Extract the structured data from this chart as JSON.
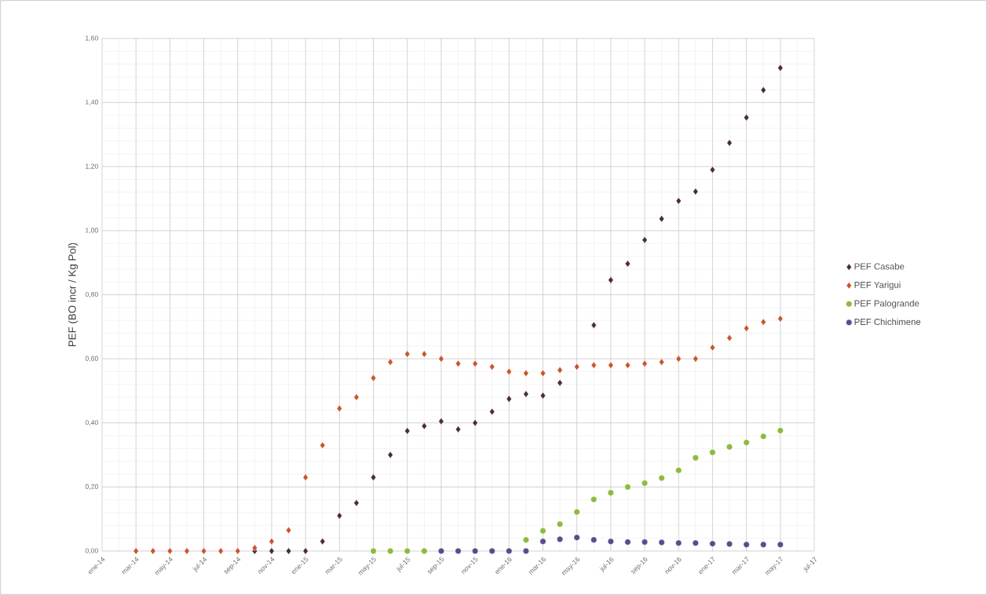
{
  "chart_data": {
    "type": "scatter",
    "ylabel": "PEF (BO incr / Kg Pol)",
    "xlim": [
      "2014-01",
      "2017-07"
    ],
    "xticks": [
      {
        "value": "2014-01",
        "label": "ene-14"
      },
      {
        "value": "2014-03",
        "label": "mar-14"
      },
      {
        "value": "2014-05",
        "label": "may-14"
      },
      {
        "value": "2014-07",
        "label": "jul-14"
      },
      {
        "value": "2014-09",
        "label": "sep-14"
      },
      {
        "value": "2014-11",
        "label": "nov-14"
      },
      {
        "value": "2015-01",
        "label": "ene-15"
      },
      {
        "value": "2015-03",
        "label": "mar-15"
      },
      {
        "value": "2015-05",
        "label": "may-15"
      },
      {
        "value": "2015-07",
        "label": "jul-15"
      },
      {
        "value": "2015-09",
        "label": "sep-15"
      },
      {
        "value": "2015-11",
        "label": "nov-15"
      },
      {
        "value": "2016-01",
        "label": "ene-16"
      },
      {
        "value": "2016-03",
        "label": "mar-16"
      },
      {
        "value": "2016-05",
        "label": "may-16"
      },
      {
        "value": "2016-07",
        "label": "jul-16"
      },
      {
        "value": "2016-09",
        "label": "sep-16"
      },
      {
        "value": "2016-11",
        "label": "nov-16"
      },
      {
        "value": "2017-01",
        "label": "ene-17"
      },
      {
        "value": "2017-03",
        "label": "mar-17"
      },
      {
        "value": "2017-05",
        "label": "may-17"
      },
      {
        "value": "2017-07",
        "label": "jul-17"
      }
    ],
    "ylim": [
      0,
      1.6
    ],
    "yticks": [
      {
        "value": 0,
        "label": "0,00"
      },
      {
        "value": 0.2,
        "label": "0,20"
      },
      {
        "value": 0.4,
        "label": "0,40"
      },
      {
        "value": 0.6,
        "label": "0,60"
      },
      {
        "value": 0.8,
        "label": "0,80"
      },
      {
        "value": 1.0,
        "label": "1,00"
      },
      {
        "value": 1.2,
        "label": "1,20"
      },
      {
        "value": 1.4,
        "label": "1,40"
      },
      {
        "value": 1.6,
        "label": "1,60"
      }
    ],
    "grid": true,
    "legend": "right",
    "series": [
      {
        "name": "PEF Casabe",
        "color": "#4a2b3b",
        "marker": "diamond",
        "x": [
          "2014-10",
          "2014-11",
          "2014-12",
          "2015-01",
          "2015-02",
          "2015-03",
          "2015-04",
          "2015-05",
          "2015-06",
          "2015-07",
          "2015-08",
          "2015-09",
          "2015-10",
          "2015-11",
          "2015-12",
          "2016-01",
          "2016-02",
          "2016-03",
          "2016-04",
          "2016-06",
          "2016-07",
          "2016-08",
          "2016-09",
          "2016-10",
          "2016-11",
          "2016-12",
          "2017-01",
          "2017-02",
          "2017-03",
          "2017-04",
          "2017-05"
        ],
        "values": [
          0,
          0,
          0,
          0,
          0.03,
          0.11,
          0.15,
          0.23,
          0.3,
          0.375,
          0.39,
          0.405,
          0.38,
          0.4,
          0.435,
          0.475,
          0.49,
          0.485,
          0.525,
          0.705,
          0.846,
          0.897,
          0.971,
          1.037,
          1.093,
          1.122,
          1.19,
          1.274,
          1.353,
          1.439,
          1.508
        ]
      },
      {
        "name": "PEF Yarigui",
        "color": "#c9552c",
        "marker": "diamond",
        "x": [
          "2014-03",
          "2014-04",
          "2014-05",
          "2014-06",
          "2014-07",
          "2014-08",
          "2014-09",
          "2014-10",
          "2014-11",
          "2014-12",
          "2015-01",
          "2015-02",
          "2015-03",
          "2015-04",
          "2015-05",
          "2015-06",
          "2015-07",
          "2015-08",
          "2015-09",
          "2015-10",
          "2015-11",
          "2015-12",
          "2016-01",
          "2016-02",
          "2016-03",
          "2016-04",
          "2016-05",
          "2016-06",
          "2016-07",
          "2016-08",
          "2016-09",
          "2016-10",
          "2016-11",
          "2016-12",
          "2017-01",
          "2017-02",
          "2017-03",
          "2017-04",
          "2017-05"
        ],
        "values": [
          0,
          0,
          0,
          0,
          0,
          0,
          0,
          0.01,
          0.03,
          0.065,
          0.23,
          0.33,
          0.445,
          0.48,
          0.54,
          0.59,
          0.615,
          0.615,
          0.6,
          0.585,
          0.585,
          0.575,
          0.56,
          0.555,
          0.555,
          0.565,
          0.575,
          0.58,
          0.58,
          0.58,
          0.585,
          0.59,
          0.6,
          0.6,
          0.635,
          0.665,
          0.695,
          0.715,
          0.725
        ]
      },
      {
        "name": "PEF Palogrande",
        "color": "#8dba3c",
        "marker": "circle",
        "x": [
          "2015-05",
          "2015-06",
          "2015-07",
          "2015-08",
          "2016-02",
          "2016-03",
          "2016-04",
          "2016-05",
          "2016-06",
          "2016-07",
          "2016-08",
          "2016-09",
          "2016-10",
          "2016-11",
          "2016-12",
          "2017-01",
          "2017-02",
          "2017-03",
          "2017-04",
          "2017-05"
        ],
        "values": [
          0,
          0,
          0,
          0,
          0.035,
          0.063,
          0.084,
          0.122,
          0.161,
          0.182,
          0.2,
          0.212,
          0.228,
          0.252,
          0.291,
          0.308,
          0.325,
          0.339,
          0.358,
          0.376
        ]
      },
      {
        "name": "PEF Chichimene",
        "color": "#5b4b8c",
        "marker": "circle",
        "x": [
          "2015-09",
          "2015-10",
          "2015-11",
          "2015-12",
          "2016-01",
          "2016-02",
          "2016-03",
          "2016-04",
          "2016-05",
          "2016-06",
          "2016-07",
          "2016-08",
          "2016-09",
          "2016-10",
          "2016-11",
          "2016-12",
          "2017-01",
          "2017-02",
          "2017-03",
          "2017-04",
          "2017-05"
        ],
        "values": [
          0,
          0,
          0,
          0,
          0,
          0,
          0.03,
          0.037,
          0.042,
          0.035,
          0.03,
          0.028,
          0.028,
          0.027,
          0.025,
          0.025,
          0.023,
          0.022,
          0.02,
          0.02,
          0.02
        ]
      }
    ]
  }
}
